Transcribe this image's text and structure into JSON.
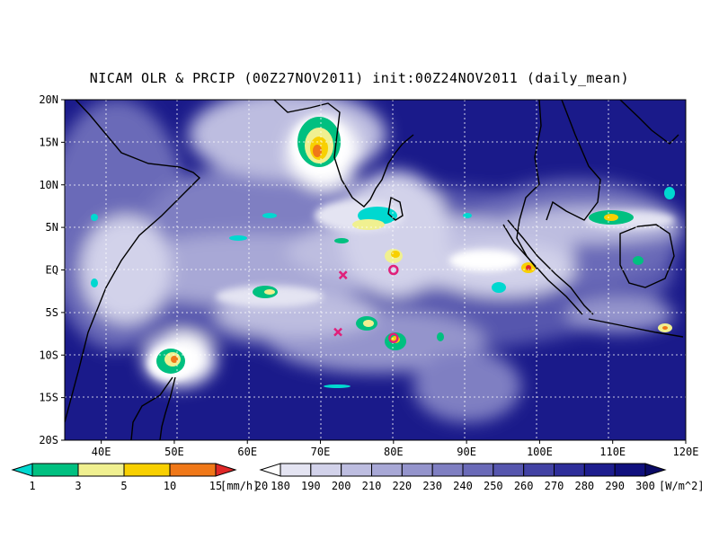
{
  "title": "NICAM OLR & PRCIP (00Z27NOV2011) init:00Z24NOV2011 (daily_mean)",
  "map": {
    "lat_labels": [
      "20N",
      "15N",
      "10N",
      "5N",
      "EQ",
      "5S",
      "10S",
      "15S",
      "20S"
    ],
    "lon_labels": [
      "40E",
      "50E",
      "60E",
      "70E",
      "80E",
      "90E",
      "100E",
      "110E",
      "120E"
    ],
    "markers": [
      {
        "type": "cross",
        "lon": 73.1,
        "lat": -0.6
      },
      {
        "type": "cross",
        "lon": 72.4,
        "lat": -7.3
      },
      {
        "type": "circle",
        "lon": 80.0,
        "lat": 0.0
      },
      {
        "type": "circle",
        "lon": 80.0,
        "lat": -8.0
      }
    ]
  },
  "precip_legend": {
    "values": [
      "1",
      "3",
      "5",
      "10",
      "15",
      "20"
    ],
    "unit": "[mm/h]",
    "colors": [
      "#00d8d0",
      "#00c080",
      "#f0f090",
      "#f8d000",
      "#f07818",
      "#e02828"
    ]
  },
  "olr_legend": {
    "values": [
      "180",
      "190",
      "200",
      "210",
      "220",
      "230",
      "240",
      "250",
      "260",
      "270",
      "280",
      "290",
      "300"
    ],
    "unit": "[W/m^2]",
    "colors": [
      "#ffffff",
      "#e4e4f2",
      "#d2d2ea",
      "#bdbde0",
      "#a8a8d6",
      "#9494cc",
      "#7f7fc2",
      "#6a6ab8",
      "#5656ae",
      "#4242a4",
      "#2e2e9a",
      "#1d1d8e",
      "#10107e",
      "#0a0a66"
    ]
  }
}
